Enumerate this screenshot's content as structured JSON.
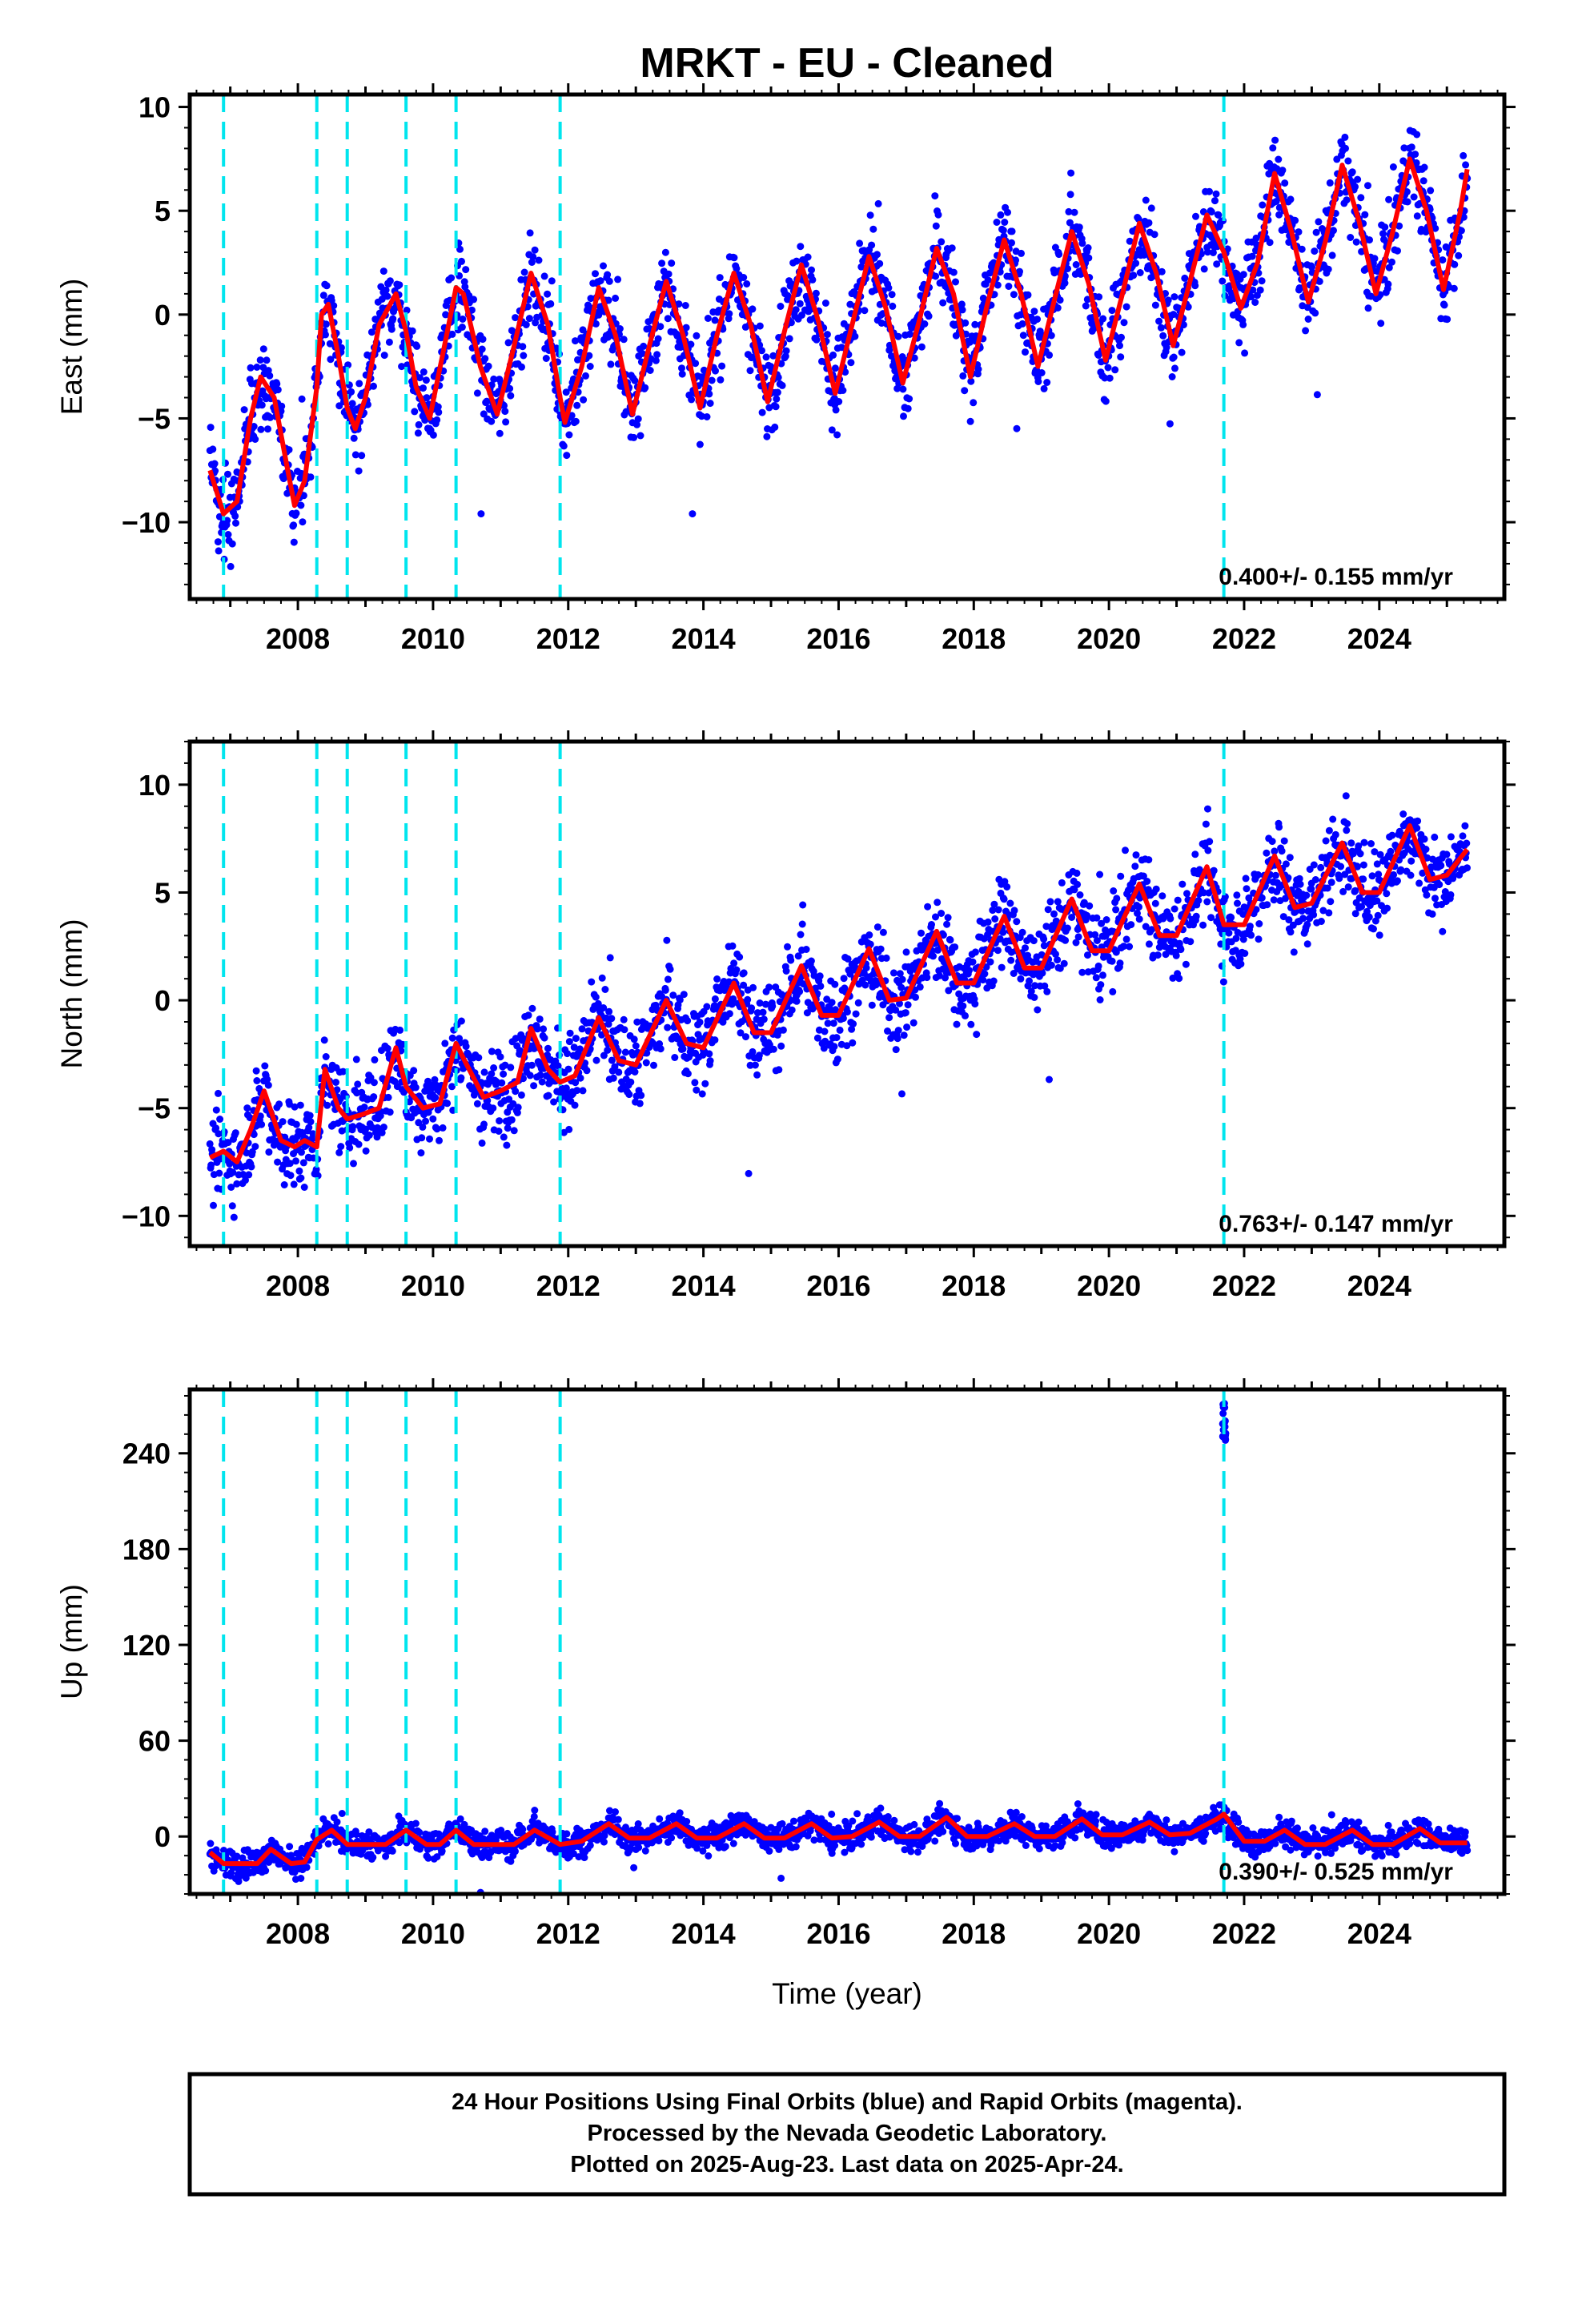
{
  "title": "MRKT  - EU - Cleaned",
  "colors": {
    "points": "#0000ff",
    "model": "#ff0000",
    "steps": "#00e5ee",
    "frame": "#000000"
  },
  "chart_data": [
    {
      "type": "scatter",
      "ylabel": "East (mm)",
      "xlim": [
        2006.4,
        2025.85
      ],
      "ylim": [
        -13.7,
        10.6
      ],
      "yticks": [
        10,
        5,
        0,
        -5,
        -10
      ],
      "xticks": [
        2008,
        2010,
        2012,
        2014,
        2016,
        2018,
        2020,
        2022,
        2024
      ],
      "rate_text": "0.400+/- 0.155 mm/yr",
      "steps": [
        2006.9,
        2008.28,
        2008.73,
        2009.6,
        2010.34,
        2011.88,
        2021.7
      ],
      "model": {
        "x": [
          2006.7,
          2006.9,
          2007.1,
          2007.3,
          2007.45,
          2007.65,
          2007.85,
          2007.95,
          2008.1,
          2008.28,
          2008.35,
          2008.45,
          2008.6,
          2008.73,
          2008.85,
          2009.0,
          2009.2,
          2009.45,
          2009.6,
          2009.75,
          2009.95,
          2010.2,
          2010.34,
          2010.45,
          2010.7,
          2010.95,
          2011.2,
          2011.45,
          2011.7,
          2011.88,
          2011.95,
          2012.2,
          2012.45,
          2012.7,
          2012.95,
          2013.2,
          2013.45,
          2013.7,
          2013.95,
          2014.2,
          2014.45,
          2014.7,
          2014.95,
          2015.2,
          2015.45,
          2015.7,
          2015.95,
          2016.2,
          2016.45,
          2016.7,
          2016.95,
          2017.2,
          2017.45,
          2017.7,
          2017.95,
          2018.2,
          2018.45,
          2018.7,
          2018.95,
          2019.2,
          2019.45,
          2019.7,
          2019.95,
          2020.2,
          2020.45,
          2020.7,
          2020.95,
          2021.2,
          2021.45,
          2021.7,
          2021.95,
          2022.2,
          2022.45,
          2022.7,
          2022.95,
          2023.2,
          2023.45,
          2023.7,
          2023.95,
          2024.2,
          2024.45,
          2024.7,
          2024.95,
          2025.2,
          2025.3
        ],
        "y": [
          -7.5,
          -9.6,
          -9.0,
          -5.0,
          -3.0,
          -4.0,
          -7.5,
          -9.2,
          -8.0,
          -3.5,
          0.0,
          0.5,
          -2.0,
          -4.5,
          -5.5,
          -4.0,
          -0.5,
          1.0,
          -0.8,
          -3.5,
          -5.0,
          -1.0,
          1.3,
          1.0,
          -2.5,
          -4.8,
          -1.5,
          2.0,
          -0.5,
          -4.0,
          -5.2,
          -2.5,
          1.3,
          -1.0,
          -4.8,
          -1.5,
          1.6,
          -1.0,
          -4.5,
          -1.0,
          2.0,
          -0.5,
          -4.2,
          -0.8,
          2.4,
          -0.3,
          -3.8,
          -0.5,
          2.8,
          0.3,
          -3.3,
          -0.2,
          3.2,
          1.0,
          -3.0,
          0.5,
          3.6,
          1.0,
          -2.5,
          0.8,
          4.0,
          1.5,
          -2.2,
          1.0,
          4.4,
          2.0,
          -1.5,
          1.6,
          4.8,
          3.0,
          0.3,
          2.5,
          6.8,
          4.0,
          0.6,
          3.5,
          7.2,
          4.5,
          1.0,
          4.0,
          7.5,
          5.0,
          1.2,
          5.0,
          7.0
        ]
      }
    },
    {
      "type": "scatter",
      "ylabel": "North (mm)",
      "xlim": [
        2006.4,
        2025.85
      ],
      "ylim": [
        -11.4,
        12.0
      ],
      "yticks": [
        10,
        5,
        0,
        -5,
        -10
      ],
      "xticks": [
        2008,
        2010,
        2012,
        2014,
        2016,
        2018,
        2020,
        2022,
        2024
      ],
      "rate_text": "0.763+/- 0.147 mm/yr",
      "steps": [
        2006.9,
        2008.28,
        2008.73,
        2009.6,
        2010.34,
        2011.88,
        2021.7
      ],
      "model": {
        "x": [
          2006.7,
          2006.9,
          2007.1,
          2007.3,
          2007.5,
          2007.75,
          2007.95,
          2008.1,
          2008.28,
          2008.4,
          2008.6,
          2008.73,
          2008.95,
          2009.2,
          2009.45,
          2009.6,
          2009.85,
          2010.1,
          2010.34,
          2010.5,
          2010.75,
          2011.0,
          2011.25,
          2011.45,
          2011.7,
          2011.88,
          2012.1,
          2012.45,
          2012.75,
          2013.0,
          2013.45,
          2013.75,
          2014.0,
          2014.45,
          2014.75,
          2015.0,
          2015.45,
          2015.75,
          2016.0,
          2016.45,
          2016.75,
          2017.0,
          2017.45,
          2017.75,
          2018.0,
          2018.45,
          2018.75,
          2019.0,
          2019.45,
          2019.75,
          2020.0,
          2020.45,
          2020.75,
          2021.0,
          2021.45,
          2021.7,
          2022.0,
          2022.45,
          2022.75,
          2023.0,
          2023.45,
          2023.75,
          2024.0,
          2024.45,
          2024.75,
          2025.0,
          2025.3
        ],
        "y": [
          -7.3,
          -7.0,
          -7.5,
          -6.0,
          -4.2,
          -6.5,
          -6.8,
          -6.5,
          -6.8,
          -3.2,
          -5.0,
          -5.5,
          -5.3,
          -5.0,
          -2.2,
          -4.0,
          -5.0,
          -4.8,
          -2.0,
          -3.0,
          -4.5,
          -4.2,
          -3.8,
          -1.3,
          -3.2,
          -3.8,
          -3.5,
          -0.8,
          -2.8,
          -3.0,
          0.0,
          -2.0,
          -2.2,
          0.8,
          -1.5,
          -1.5,
          1.6,
          -0.7,
          -0.7,
          2.4,
          0.0,
          0.1,
          3.2,
          0.8,
          0.8,
          3.9,
          1.5,
          1.5,
          4.7,
          2.3,
          2.3,
          5.4,
          3.0,
          3.0,
          6.2,
          3.5,
          3.5,
          6.7,
          4.3,
          4.5,
          7.3,
          5.0,
          5.0,
          8.1,
          5.6,
          5.8,
          7.0
        ]
      }
    },
    {
      "type": "scatter",
      "ylabel": "Up (mm)",
      "xlabel": "Time (year)",
      "xlim": [
        2006.4,
        2025.85
      ],
      "ylim": [
        -36,
        280
      ],
      "yticks": [
        240,
        180,
        120,
        60,
        0
      ],
      "xticks": [
        2008,
        2010,
        2012,
        2014,
        2016,
        2018,
        2020,
        2022,
        2024
      ],
      "rate_text": "0.390+/- 0.525 mm/yr",
      "steps": [
        2006.9,
        2008.28,
        2008.73,
        2009.6,
        2010.34,
        2011.88,
        2021.7
      ],
      "model": {
        "x": [
          2006.7,
          2006.9,
          2007.1,
          2007.4,
          2007.6,
          2007.9,
          2008.1,
          2008.28,
          2008.5,
          2008.73,
          2009.0,
          2009.3,
          2009.6,
          2009.9,
          2010.1,
          2010.34,
          2010.6,
          2010.9,
          2011.2,
          2011.5,
          2011.88,
          2012.2,
          2012.6,
          2012.9,
          2013.2,
          2013.6,
          2013.9,
          2014.2,
          2014.6,
          2014.9,
          2015.2,
          2015.6,
          2015.9,
          2016.2,
          2016.6,
          2016.9,
          2017.2,
          2017.6,
          2017.9,
          2018.2,
          2018.6,
          2018.9,
          2019.2,
          2019.6,
          2019.9,
          2020.2,
          2020.6,
          2020.9,
          2021.2,
          2021.6,
          2021.7,
          2022.0,
          2022.3,
          2022.6,
          2022.9,
          2023.2,
          2023.6,
          2023.9,
          2024.2,
          2024.6,
          2024.9,
          2025.3
        ],
        "y": [
          -10,
          -17,
          -17,
          -17,
          -8,
          -17,
          -16,
          -2,
          4,
          -5,
          -5,
          -5,
          4,
          -5,
          -5,
          4,
          -5,
          -5,
          -5,
          4,
          -5,
          -3,
          8,
          -1,
          -1,
          8,
          -1,
          -1,
          8,
          -1,
          -1,
          8,
          -1,
          0,
          9,
          0,
          0,
          12,
          0,
          0,
          8,
          0,
          0,
          11,
          1,
          1,
          9,
          1,
          2,
          11,
          14,
          -3,
          -3,
          4,
          -5,
          -5,
          4,
          -5,
          -5,
          5,
          -4,
          -4
        ]
      }
    }
  ],
  "caption": {
    "line1": "24 Hour Positions Using Final Orbits (blue) and Rapid Orbits (magenta).",
    "line2": "Processed by the Nevada Geodetic Laboratory.",
    "line3": "Plotted on 2025-Aug-23. Last data on 2025-Apr-24."
  }
}
